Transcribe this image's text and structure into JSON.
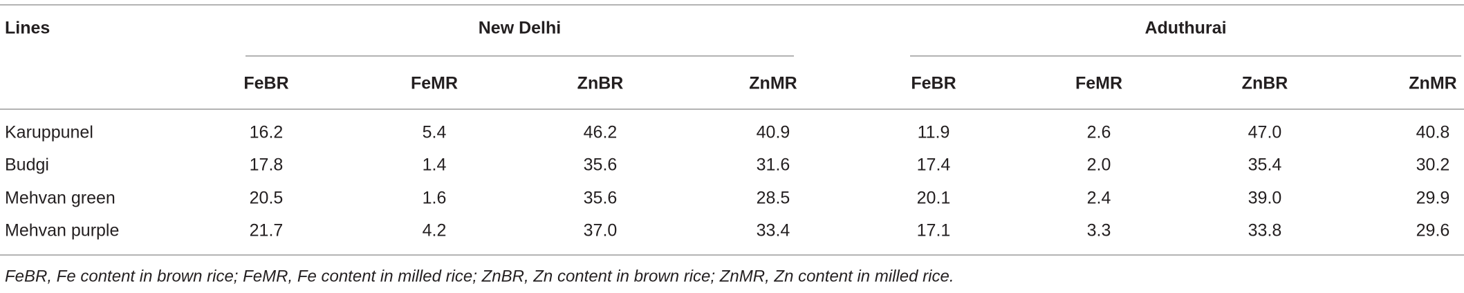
{
  "table": {
    "header": {
      "first": "Lines",
      "groups": [
        {
          "name": "New Delhi",
          "columns": [
            "FeBR",
            "FeMR",
            "ZnBR",
            "ZnMR"
          ]
        },
        {
          "name": "Aduthurai",
          "columns": [
            "FeBR",
            "FeMR",
            "ZnBR",
            "ZnMR"
          ]
        }
      ]
    },
    "rows": [
      {
        "line": "Karuppunel",
        "values": [
          "16.2",
          "5.4",
          "46.2",
          "40.9",
          "11.9",
          "2.6",
          "47.0",
          "40.8"
        ]
      },
      {
        "line": "Budgi",
        "values": [
          "17.8",
          "1.4",
          "35.6",
          "31.6",
          "17.4",
          "2.0",
          "35.4",
          "30.2"
        ]
      },
      {
        "line": "Mehvan green",
        "values": [
          "20.5",
          "1.6",
          "35.6",
          "28.5",
          "20.1",
          "2.4",
          "39.0",
          "29.9"
        ]
      },
      {
        "line": "Mehvan purple",
        "values": [
          "21.7",
          "4.2",
          "37.0",
          "33.4",
          "17.1",
          "3.3",
          "33.8",
          "29.6"
        ]
      }
    ],
    "footnote": "FeBR, Fe content in brown rice; FeMR, Fe content in milled rice; ZnBR, Zn content in brown rice; ZnMR, Zn content in milled rice."
  }
}
